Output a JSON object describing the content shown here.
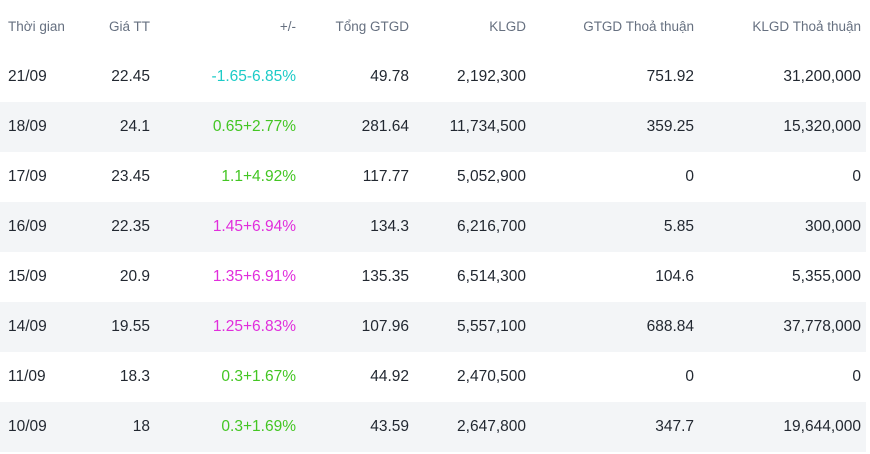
{
  "columns": [
    "Thời gian",
    "Giá TT",
    "+/-",
    "Tổng GTGD",
    "KLGD",
    "GTGD Thoả thuận",
    "KLGD Thoả thuận"
  ],
  "colors": {
    "up": "#43c623",
    "floor": "#1ccbc7",
    "ceiling": "#e12ddc"
  },
  "rows": [
    {
      "date": "21/09",
      "price": "22.45",
      "change": "-1.65",
      "pct": "-6.85%",
      "tone": "floor",
      "total_value": "49.78",
      "volume": "2,192,300",
      "deal_value": "751.92",
      "deal_volume": "31,200,000"
    },
    {
      "date": "18/09",
      "price": "24.1",
      "change": "0.65",
      "pct": "+2.77%",
      "tone": "up",
      "total_value": "281.64",
      "volume": "11,734,500",
      "deal_value": "359.25",
      "deal_volume": "15,320,000"
    },
    {
      "date": "17/09",
      "price": "23.45",
      "change": "1.1",
      "pct": "+4.92%",
      "tone": "up",
      "total_value": "117.77",
      "volume": "5,052,900",
      "deal_value": "0",
      "deal_volume": "0"
    },
    {
      "date": "16/09",
      "price": "22.35",
      "change": "1.45",
      "pct": "+6.94%",
      "tone": "ceiling",
      "total_value": "134.3",
      "volume": "6,216,700",
      "deal_value": "5.85",
      "deal_volume": "300,000"
    },
    {
      "date": "15/09",
      "price": "20.9",
      "change": "1.35",
      "pct": "+6.91%",
      "tone": "ceiling",
      "total_value": "135.35",
      "volume": "6,514,300",
      "deal_value": "104.6",
      "deal_volume": "5,355,000"
    },
    {
      "date": "14/09",
      "price": "19.55",
      "change": "1.25",
      "pct": "+6.83%",
      "tone": "ceiling",
      "total_value": "107.96",
      "volume": "5,557,100",
      "deal_value": "688.84",
      "deal_volume": "37,778,000"
    },
    {
      "date": "11/09",
      "price": "18.3",
      "change": "0.3",
      "pct": "+1.67%",
      "tone": "up",
      "total_value": "44.92",
      "volume": "2,470,500",
      "deal_value": "0",
      "deal_volume": "0"
    },
    {
      "date": "10/09",
      "price": "18",
      "change": "0.3",
      "pct": "+1.69%",
      "tone": "up",
      "total_value": "43.59",
      "volume": "2,647,800",
      "deal_value": "347.7",
      "deal_volume": "19,644,000"
    }
  ]
}
